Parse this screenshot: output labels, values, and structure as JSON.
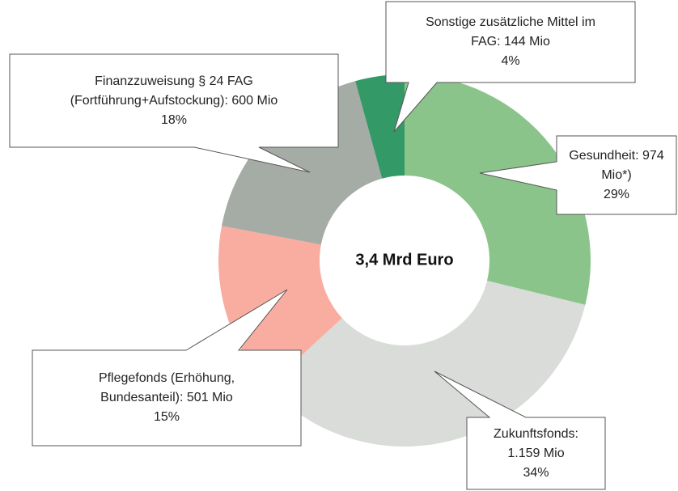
{
  "chart_data": {
    "type": "donut",
    "center_label": "3,4 Mrd Euro",
    "categories": [
      "Gesundheit:",
      "Zukunftsfonds:",
      "Pflegefonds (Erhöhung, Bundesanteil):",
      "Finanzzuweisung § 24 FAG (Fortführung+Aufstockung):",
      "Sonstige zusätzliche Mittel im FAG:"
    ],
    "values": [
      974,
      1159,
      501,
      600,
      144
    ],
    "value_labels": [
      "974 Mio*)",
      "1.159 Mio",
      "501 Mio",
      "600 Mio",
      "144 Mio"
    ],
    "percents": [
      29,
      34,
      15,
      18,
      4
    ],
    "percent_labels": [
      "29%",
      "34%",
      "15%",
      "18%",
      "4%"
    ],
    "colors": [
      "#8bc48a",
      "#d9dcd9",
      "#f9ada0",
      "#a5aba5",
      "#339966"
    ]
  }
}
